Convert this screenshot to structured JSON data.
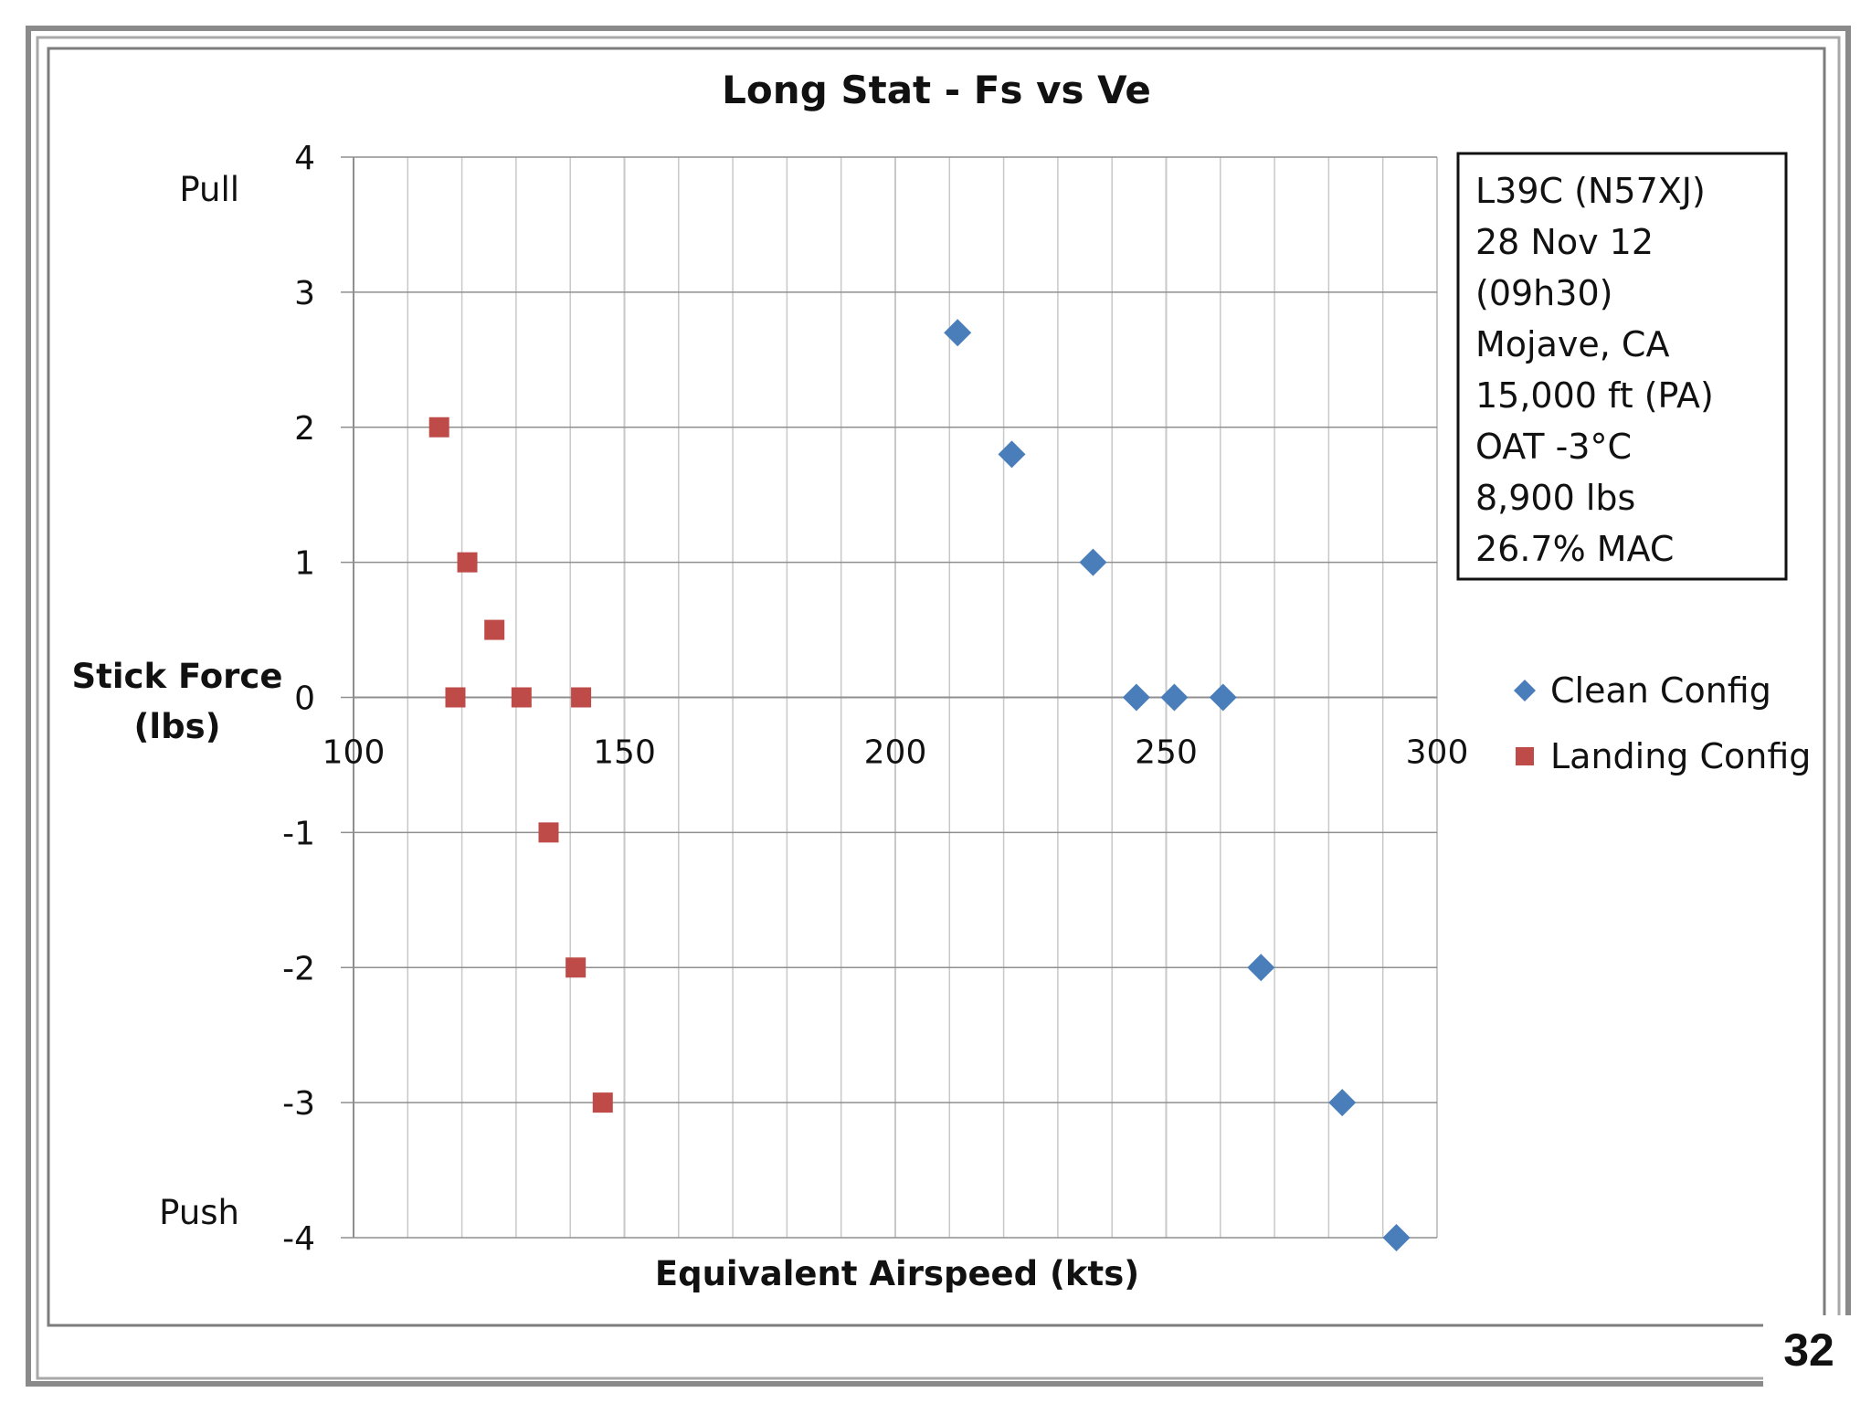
{
  "page": {
    "number": "32"
  },
  "chart_data": {
    "type": "scatter",
    "title": "Long Stat - Fs vs Ve",
    "xlabel": "Equivalent Airspeed (kts)",
    "ylabel": "Stick Force\n(lbs)",
    "ylabel_lines": [
      "Stick Force",
      "(lbs)"
    ],
    "xlim": [
      100,
      300
    ],
    "ylim": [
      -4,
      4
    ],
    "x_ticks": [
      100,
      150,
      200,
      250,
      300
    ],
    "y_ticks": [
      4,
      3,
      2,
      1,
      0,
      -1,
      -2,
      -3,
      -4
    ],
    "x_tick_labels": [
      "100",
      "150",
      "200",
      "250",
      "300"
    ],
    "y_tick_labels": [
      "4",
      "3",
      "2",
      "1",
      "0",
      "-1",
      "-2",
      "-3",
      "-4"
    ],
    "grid": true,
    "side_labels": {
      "top": "Pull",
      "bottom": "Push"
    },
    "annotation_lines": [
      "L39C (N57XJ)",
      "28 Nov 12",
      "(09h30)",
      "Mojave, CA",
      "15,000 ft (PA)",
      "OAT -3°C",
      "8,900 lbs",
      "26.7% MAC"
    ],
    "legend_position": "right",
    "series": [
      {
        "name": "Clean Config",
        "marker": "diamond",
        "color": "#4a7ebb",
        "points": [
          {
            "x": 211.5,
            "y": 2.7
          },
          {
            "x": 221.5,
            "y": 1.8
          },
          {
            "x": 236.5,
            "y": 1.0
          },
          {
            "x": 244.5,
            "y": 0.0
          },
          {
            "x": 251.5,
            "y": 0.0
          },
          {
            "x": 260.5,
            "y": 0.0
          },
          {
            "x": 267.5,
            "y": -2.0
          },
          {
            "x": 282.5,
            "y": -3.0
          },
          {
            "x": 292.5,
            "y": -4.0
          }
        ]
      },
      {
        "name": "Landing Config",
        "marker": "square",
        "color": "#be4b48",
        "points": [
          {
            "x": 115.8,
            "y": 2.0
          },
          {
            "x": 121.0,
            "y": 1.0
          },
          {
            "x": 126.0,
            "y": 0.5
          },
          {
            "x": 118.8,
            "y": 0.0
          },
          {
            "x": 131.0,
            "y": 0.0
          },
          {
            "x": 142.0,
            "y": 0.0
          },
          {
            "x": 136.0,
            "y": -1.0
          },
          {
            "x": 141.0,
            "y": -2.0
          },
          {
            "x": 146.0,
            "y": -3.0
          }
        ]
      }
    ]
  },
  "colors": {
    "frame_outer": "#888888",
    "frame_inner": "#9a9a9a",
    "grid": "#c8c8c8",
    "axis": "#8f8f8f",
    "box_border": "#111111"
  }
}
